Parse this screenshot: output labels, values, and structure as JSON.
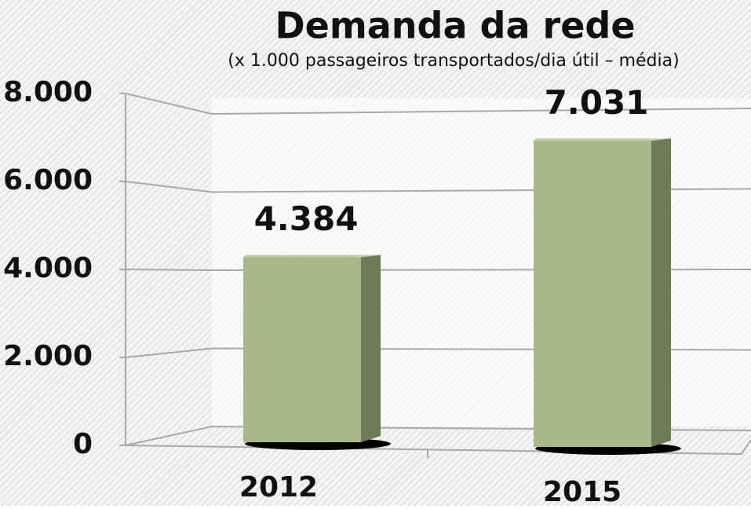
{
  "chart_data": {
    "type": "bar",
    "title": "Demanda da rede",
    "subtitle": "(x 1.000 passageiros transportados/dia útil – média)",
    "categories": [
      "2012",
      "2015"
    ],
    "values": [
      4384,
      7031
    ],
    "value_labels": [
      "4.384",
      "7.031"
    ],
    "color": "#a8b88a",
    "ylim": [
      0,
      8000
    ],
    "yticks": [
      {
        "value": 0,
        "label": "0"
      },
      {
        "value": 2000,
        "label": "2.000"
      },
      {
        "value": 4000,
        "label": "4.000"
      },
      {
        "value": 6000,
        "label": "6.000"
      },
      {
        "value": 8000,
        "label": "8.000"
      }
    ],
    "grid": true
  }
}
